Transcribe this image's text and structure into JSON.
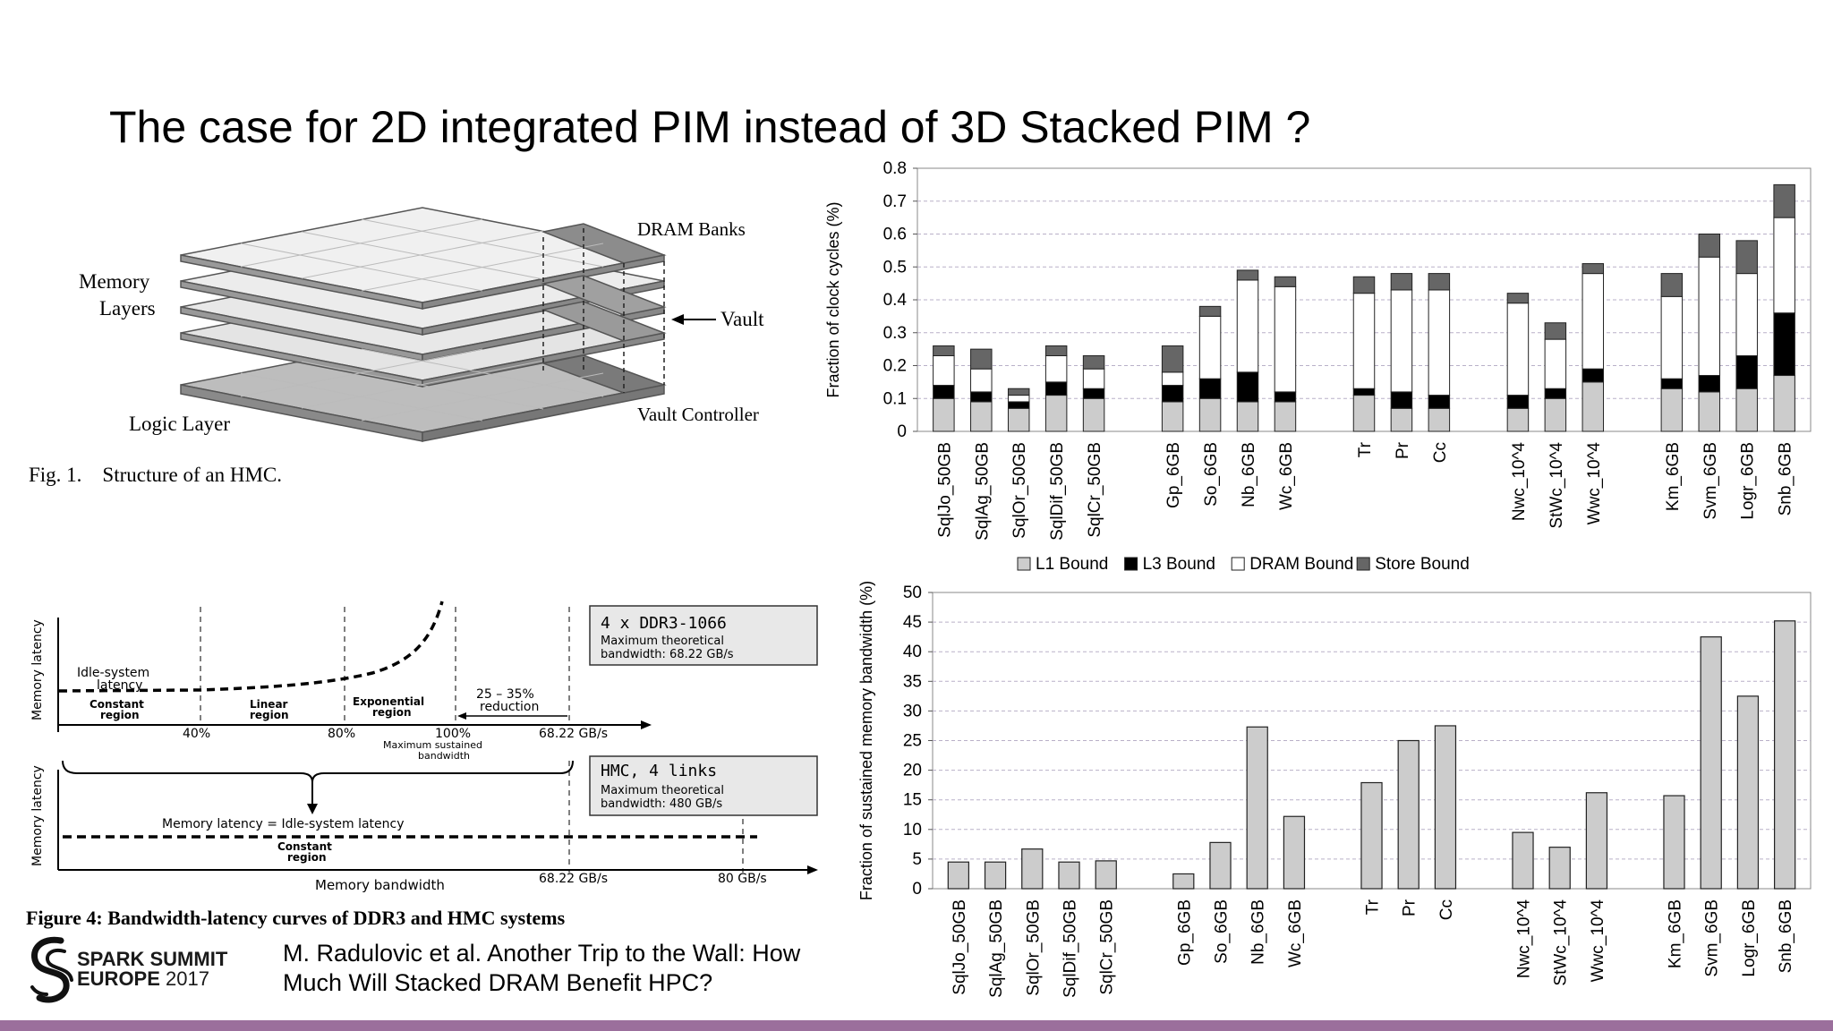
{
  "slide": {
    "title": "The case for 2D integrated PIM instead of 3D Stacked PIM  ?",
    "citation_line1": "M. Radulovic et al. Another Trip to the Wall: How",
    "citation_line2": "Much Will Stacked DRAM Benefit HPC?",
    "accent_color": "#9b6f9c"
  },
  "logo": {
    "line1": "SPARK SUMMIT",
    "line2a": "EUROPE",
    "line2b": "2017"
  },
  "hmc_figure": {
    "label_memory1": "Memory",
    "label_memory2": "Layers",
    "label_logic": "Logic Layer",
    "label_dram_banks": "DRAM Banks",
    "label_vault": "Vault",
    "label_vault_controller": "Vault Controller",
    "caption": "Fig. 1.    Structure of an HMC."
  },
  "bw_figure": {
    "ylabel": "Memory latency",
    "idle1": "Idle-system",
    "idle2": "latency",
    "constant1": "Constant",
    "constant2": "region",
    "linear1": "Linear",
    "linear2": "region",
    "exponential1": "Exponential",
    "exponential2": "region",
    "reduction1": "25 – 35%",
    "reduction2": "reduction",
    "tick40": "40%",
    "tick80": "80%",
    "tick100": "100%",
    "tick6822": "68.22 GB/s",
    "max_sustained1": "Maximum sustained",
    "max_sustained2": "bandwidth",
    "ddr_box_title": "4 x DDR3-1066",
    "ddr_box_line1": "Maximum theoretical",
    "ddr_box_line2": "bandwidth: 68.22 GB/s",
    "hmc_box_title": "HMC, 4 links",
    "hmc_box_line1": "Maximum theoretical",
    "hmc_box_line2": "bandwidth: 480 GB/s",
    "equal_label": "Memory latency = Idle-system latency",
    "constant_b1": "Constant",
    "constant_b2": "region",
    "xlabel": "Memory bandwidth",
    "tick6822b": "68.22 GB/s",
    "tick80gb": "80 GB/s",
    "caption": "Figure 4:  Bandwidth-latency curves of DDR3 and HMC systems"
  },
  "chart_data": [
    {
      "type": "bar",
      "stacked": true,
      "ylabel": "Fraction of clock cycles (%)",
      "ylim": [
        0,
        0.8
      ],
      "yticks": [
        "0",
        "0.1",
        "0.2",
        "0.3",
        "0.4",
        "0.5",
        "0.6",
        "0.7",
        "0.8"
      ],
      "grid": true,
      "legend": "bottom",
      "categories": [
        "SqlJo_50GB",
        "SqlAg_50GB",
        "SqlOr_50GB",
        "SqlDif_50GB",
        "SqlCr_50GB",
        "Gp_6GB",
        "So_6GB",
        "Nb_6GB",
        "Wc_6GB",
        "Tr",
        "Pr",
        "Cc",
        "Nwc_10^4",
        "StWc_10^4",
        "Wwc_10^4",
        "Km_6GB",
        "Svm_6GB",
        "Logr_6GB",
        "Snb_6GB"
      ],
      "groups": [
        5,
        4,
        3,
        3,
        4
      ],
      "series": [
        {
          "name": "L1 Bound",
          "color": "#cccccc",
          "values": [
            0.1,
            0.09,
            0.07,
            0.11,
            0.1,
            0.09,
            0.1,
            0.09,
            0.09,
            0.11,
            0.07,
            0.07,
            0.07,
            0.1,
            0.15,
            0.13,
            0.12,
            0.13,
            0.17
          ]
        },
        {
          "name": "L3 Bound",
          "color": "#000000",
          "values": [
            0.04,
            0.03,
            0.02,
            0.04,
            0.03,
            0.05,
            0.06,
            0.09,
            0.03,
            0.02,
            0.05,
            0.04,
            0.04,
            0.03,
            0.04,
            0.03,
            0.05,
            0.1,
            0.19
          ]
        },
        {
          "name": "DRAM Bound",
          "color": "#ffffff",
          "values": [
            0.09,
            0.07,
            0.02,
            0.08,
            0.06,
            0.04,
            0.19,
            0.28,
            0.32,
            0.29,
            0.31,
            0.32,
            0.28,
            0.15,
            0.29,
            0.25,
            0.36,
            0.25,
            0.29
          ]
        },
        {
          "name": "Store Bound",
          "color": "#666666",
          "values": [
            0.03,
            0.06,
            0.02,
            0.03,
            0.04,
            0.08,
            0.03,
            0.03,
            0.03,
            0.05,
            0.05,
            0.05,
            0.03,
            0.05,
            0.03,
            0.07,
            0.07,
            0.1,
            0.1
          ]
        }
      ]
    },
    {
      "type": "bar",
      "ylabel": "Fraction of sustained memory bandwidth (%)",
      "ylim": [
        0,
        50
      ],
      "yticks": [
        "0",
        "5",
        "10",
        "15",
        "20",
        "25",
        "30",
        "35",
        "40",
        "45",
        "50"
      ],
      "grid": true,
      "categories": [
        "SqlJo_50GB",
        "SqlAg_50GB",
        "SqlOr_50GB",
        "SqlDif_50GB",
        "SqlCr_50GB",
        "Gp_6GB",
        "So_6GB",
        "Nb_6GB",
        "Wc_6GB",
        "Tr",
        "Pr",
        "Cc",
        "Nwc_10^4",
        "StWc_10^4",
        "Wwc_10^4",
        "Km_6GB",
        "Svm_6GB",
        "Logr_6GB",
        "Snb_6GB"
      ],
      "groups": [
        5,
        4,
        3,
        3,
        4
      ],
      "values": [
        4.5,
        4.5,
        6.7,
        4.5,
        4.7,
        2.5,
        7.8,
        27.3,
        12.2,
        17.9,
        25.0,
        27.5,
        9.5,
        7.0,
        16.2,
        15.7,
        42.5,
        32.5,
        45.2
      ],
      "color": "#cccccc"
    }
  ]
}
